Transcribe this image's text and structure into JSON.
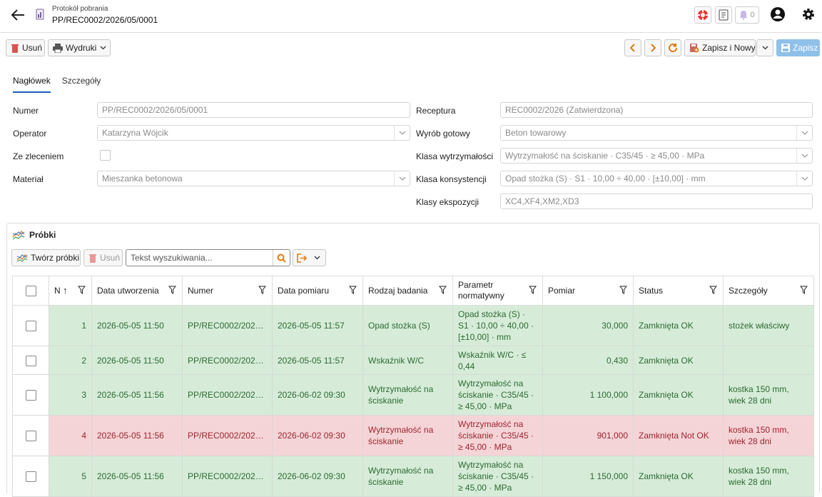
{
  "header": {
    "subtitle": "Protokół pobrania",
    "title": "PP/REC0002/2026/05/0001",
    "notifications_count": "0"
  },
  "toolbar": {
    "delete_label": "Usuń",
    "prints_label": "Wydruki",
    "save_new_label": "Zapisz i Nowy",
    "save_label": "Zapisz"
  },
  "tabs": [
    "Nagłówek",
    "Szczegóły"
  ],
  "form": {
    "numer_label": "Numer",
    "numer_value": "PP/REC0002/2026/05/0001",
    "operator_label": "Operator",
    "operator_value": "Katarzyna Wójcik",
    "zlecenie_label": "Ze zleceniem",
    "material_label": "Materiał",
    "material_value": "Mieszanka betonowa",
    "receptura_label": "Receptura",
    "receptura_value": "REC0002/2026 (Zatwierdzona)",
    "wyrob_label": "Wyrób gotowy",
    "wyrob_value": "Beton towarowy",
    "klasa_wytrz_label": "Klasa wytrzymałości",
    "klasa_wytrz_value": "Wytrzymałość na ściskanie · C35/45 · ≥ 45,00 · MPa",
    "klasa_kons_label": "Klasa konsystencji",
    "klasa_kons_value": "Opad stożka (S) · S1 · 10,00 ÷ 40,00 · [±10,00] · mm",
    "klasy_eksp_label": "Klasy ekspozycji",
    "klasy_eksp_value": "XC4,XF4,XM2,XD3"
  },
  "samples": {
    "title": "Próbki",
    "create_label": "Twórz próbki",
    "delete_label": "Usuń",
    "search_placeholder": "Tekst wyszukiwania...",
    "columns": [
      "N",
      "Data utworzenia",
      "Numer",
      "Data pomiaru",
      "Rodzaj badania",
      "Parametr normatywny",
      "Pomiar",
      "Status",
      "Szczegóły"
    ],
    "rows": [
      {
        "n": "1",
        "created": "2026-05-05 11:50",
        "numer": "PP/REC0002/2026/...",
        "measured": "2026-05-05 11:57",
        "type": "Opad stożka (S)",
        "param": "Opad stożka (S) · S1 · 10,00 ÷ 40,00 · [±10,00] · mm",
        "value": "30,000",
        "status": "Zamknięta OK",
        "details": "stożek właściwy",
        "state": "ok"
      },
      {
        "n": "2",
        "created": "2026-05-05 11:50",
        "numer": "PP/REC0002/2026/...",
        "measured": "2026-05-05 11:57",
        "type": "Wskaźnik W/C",
        "param": "Wskaźnik W/C · ≤ 0,44",
        "value": "0,430",
        "status": "Zamknięta OK",
        "details": "",
        "state": "ok"
      },
      {
        "n": "3",
        "created": "2026-05-05 11:56",
        "numer": "PP/REC0002/2026/...",
        "measured": "2026-06-02 09:30",
        "type": "Wytrzymałość na ściskanie",
        "param": "Wytrzymałość na ściskanie · C35/45 · ≥ 45,00 · MPa",
        "value": "1 100,000",
        "status": "Zamknięta OK",
        "details": "kostka 150 mm, wiek 28 dni",
        "state": "ok"
      },
      {
        "n": "4",
        "created": "2026-05-05 11:56",
        "numer": "PP/REC0002/2026/...",
        "measured": "2026-06-02 09:30",
        "type": "Wytrzymałość na ściskanie",
        "param": "Wytrzymałość na ściskanie · C35/45 · ≥ 45,00 · MPa",
        "value": "901,000",
        "status": "Zamknięta Not OK",
        "details": "kostka 150 mm, wiek 28 dni",
        "state": "nok"
      },
      {
        "n": "5",
        "created": "2026-05-05 11:56",
        "numer": "PP/REC0002/2026/...",
        "measured": "2026-06-02 09:30",
        "type": "Wytrzymałość na ściskanie",
        "param": "Wytrzymałość na ściskanie · C35/45 · ≥ 45,00 · MPa",
        "value": "1 150,000",
        "status": "Zamknięta OK",
        "details": "kostka 150 mm, wiek 28 dni",
        "state": "ok"
      }
    ]
  },
  "colors": {
    "accent": "#1a5fb4",
    "ok_bg": "#d6ecd8",
    "nok_bg": "#f5d4d7",
    "delete_red": "#d9534f",
    "orange": "#e07a12"
  }
}
